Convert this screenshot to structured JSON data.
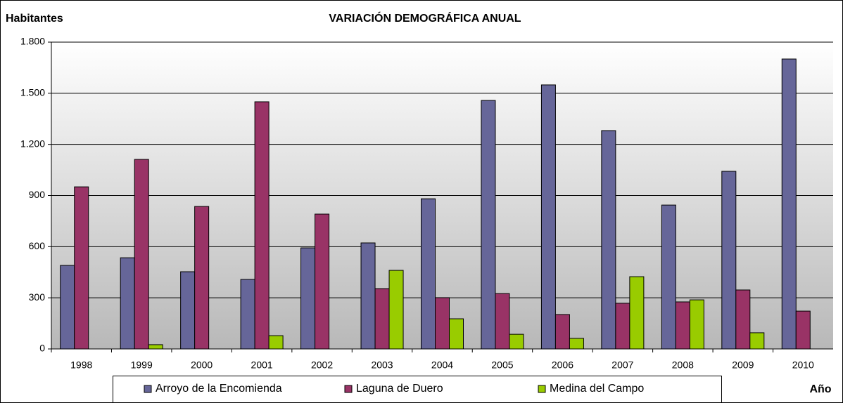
{
  "chart_data": {
    "type": "bar",
    "title": "VARIACIÓN DEMOGRÁFICA ANUAL",
    "y_label": "Habitantes",
    "x_label": "Año",
    "categories": [
      "1998",
      "1999",
      "2000",
      "2001",
      "2002",
      "2003",
      "2004",
      "2005",
      "2006",
      "2007",
      "2008",
      "2009",
      "2010"
    ],
    "series": [
      {
        "name": "Arroyo de la Encomienda",
        "color": "#666699",
        "values": [
          490,
          535,
          453,
          408,
          593,
          622,
          881,
          1458,
          1549,
          1281,
          844,
          1042,
          1701
        ]
      },
      {
        "name": "Laguna de Duero",
        "color": "#993366",
        "values": [
          951,
          1112,
          836,
          1450,
          791,
          354,
          301,
          325,
          202,
          268,
          276,
          346,
          222
        ]
      },
      {
        "name": "Medina del Campo",
        "color": "#99cc00",
        "values": [
          0,
          25,
          0,
          78,
          0,
          461,
          177,
          86,
          62,
          424,
          288,
          95,
          0
        ]
      }
    ],
    "ylim": [
      0,
      1800
    ],
    "yticks": [
      0,
      300,
      600,
      900,
      {
        "value": 1200,
        "label": "1.200"
      },
      {
        "value": 1500,
        "label": "1.500"
      },
      {
        "value": 1800,
        "label": "1.800"
      }
    ],
    "grid": true,
    "legend": "bottom"
  }
}
